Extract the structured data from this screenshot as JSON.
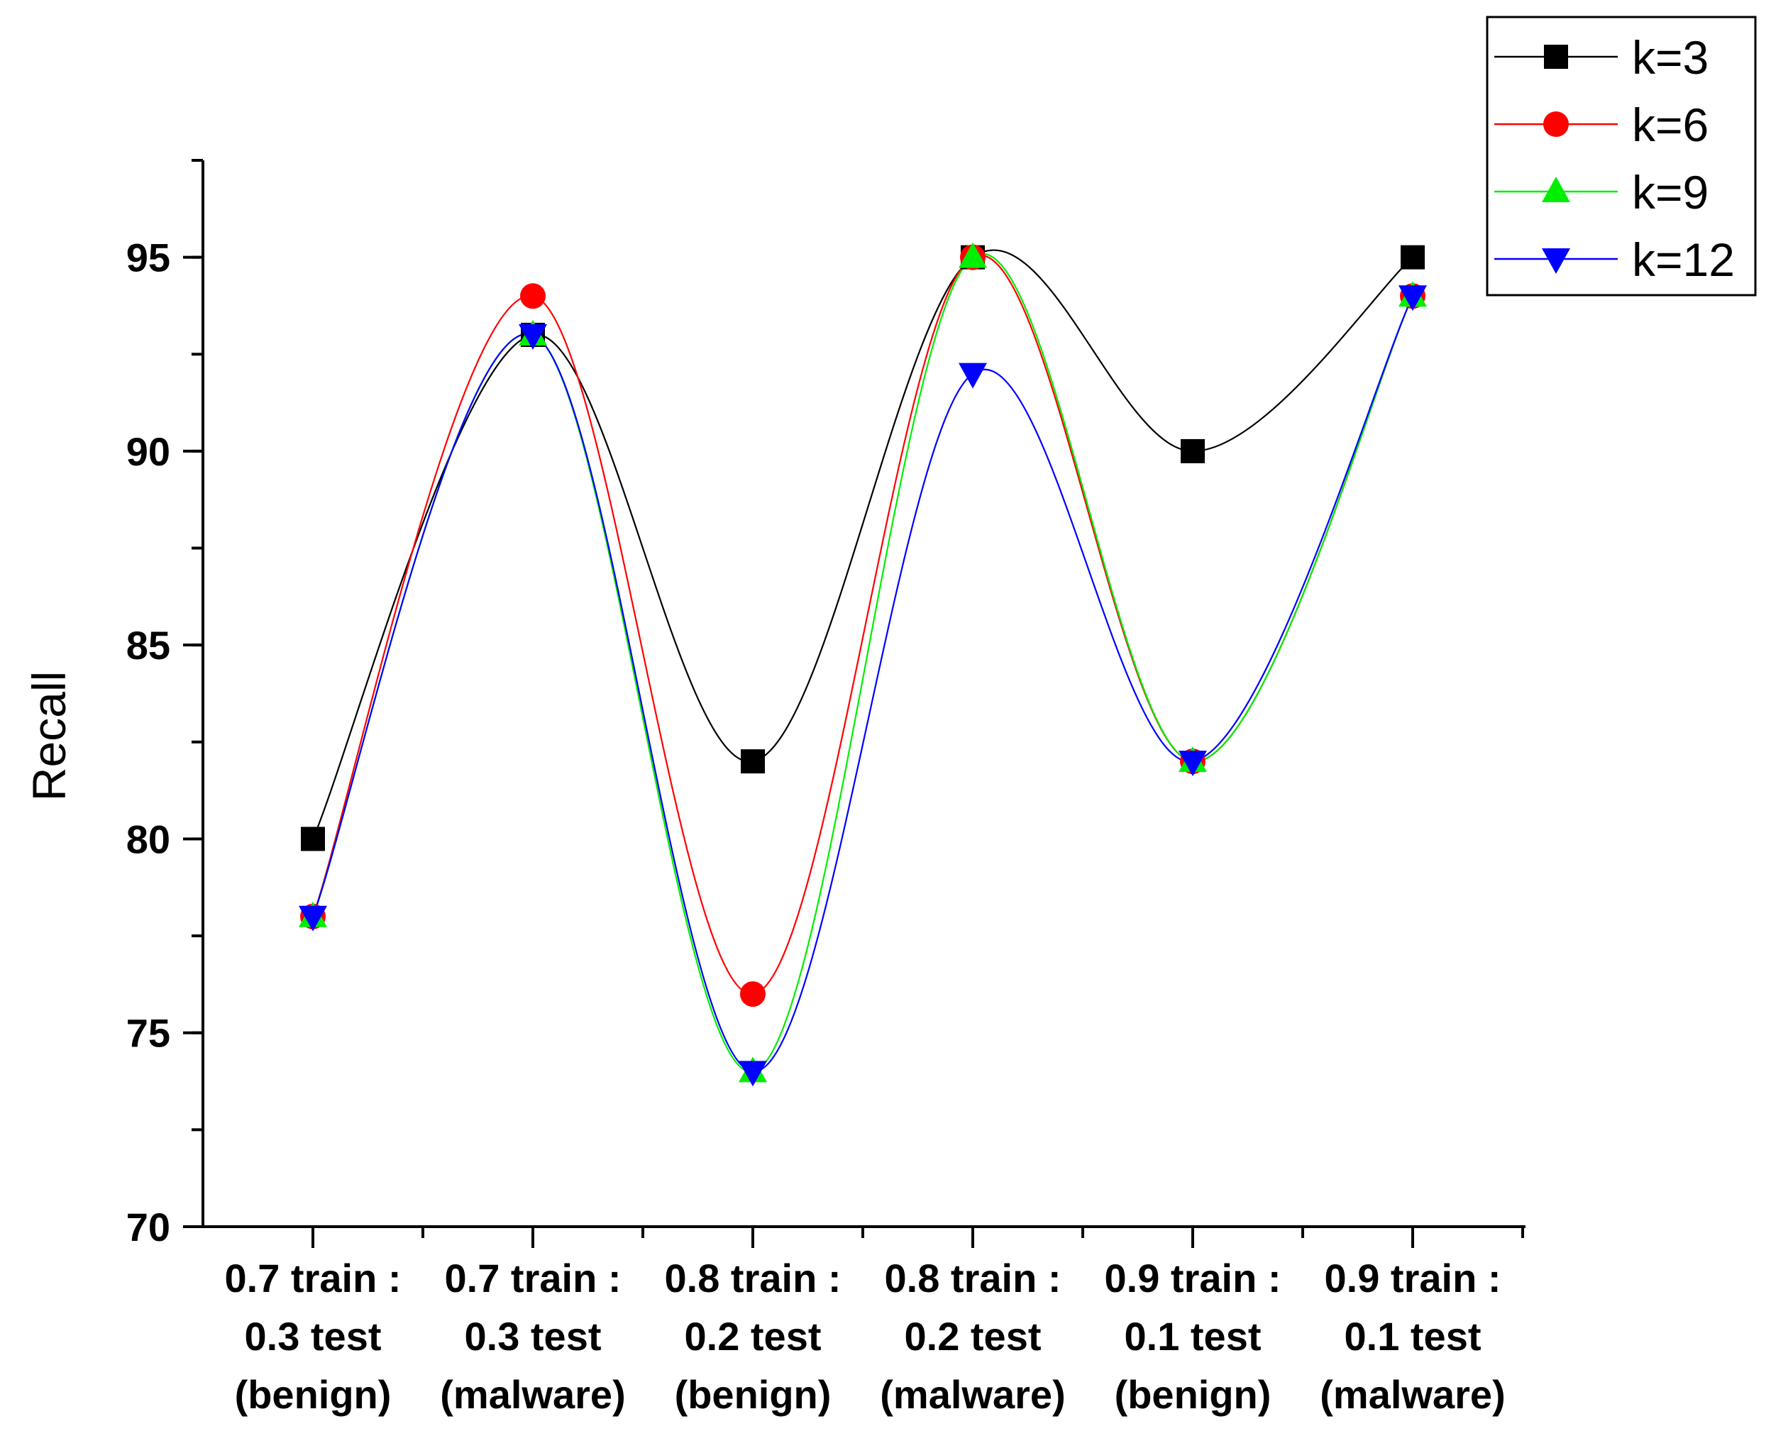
{
  "chart_data": {
    "type": "line",
    "title": "",
    "xlabel": "",
    "ylabel": "Recall",
    "ylim": [
      70,
      97.5
    ],
    "yticks": [
      70,
      75,
      80,
      85,
      90,
      95
    ],
    "y_minor_step": 2.5,
    "grid": false,
    "legend_position": "top-right",
    "categories": [
      [
        "0.7 train :",
        "0.3 test",
        "(benign)"
      ],
      [
        "0.7 train :",
        "0.3 test",
        "(malware)"
      ],
      [
        "0.8 train :",
        "0.2 test",
        "(benign)"
      ],
      [
        "0.8 train :",
        "0.2 test",
        "(malware)"
      ],
      [
        "0.9 train :",
        "0.1 test",
        "(benign)"
      ],
      [
        "0.9 train :",
        "0.1 test",
        "(malware)"
      ]
    ],
    "series": [
      {
        "name": "k=3",
        "color": "#000000",
        "marker": "square",
        "values": [
          80,
          93,
          82,
          95,
          90,
          95
        ]
      },
      {
        "name": "k=6",
        "color": "#ff0000",
        "marker": "circle",
        "values": [
          78,
          94,
          76,
          95,
          82,
          94
        ]
      },
      {
        "name": "k=9",
        "color": "#00ee00",
        "marker": "triangle-up",
        "values": [
          78,
          93,
          74,
          95,
          82,
          94
        ]
      },
      {
        "name": "k=12",
        "color": "#0000ff",
        "marker": "triangle-down",
        "values": [
          78,
          93,
          74,
          92,
          82,
          94
        ]
      }
    ]
  }
}
